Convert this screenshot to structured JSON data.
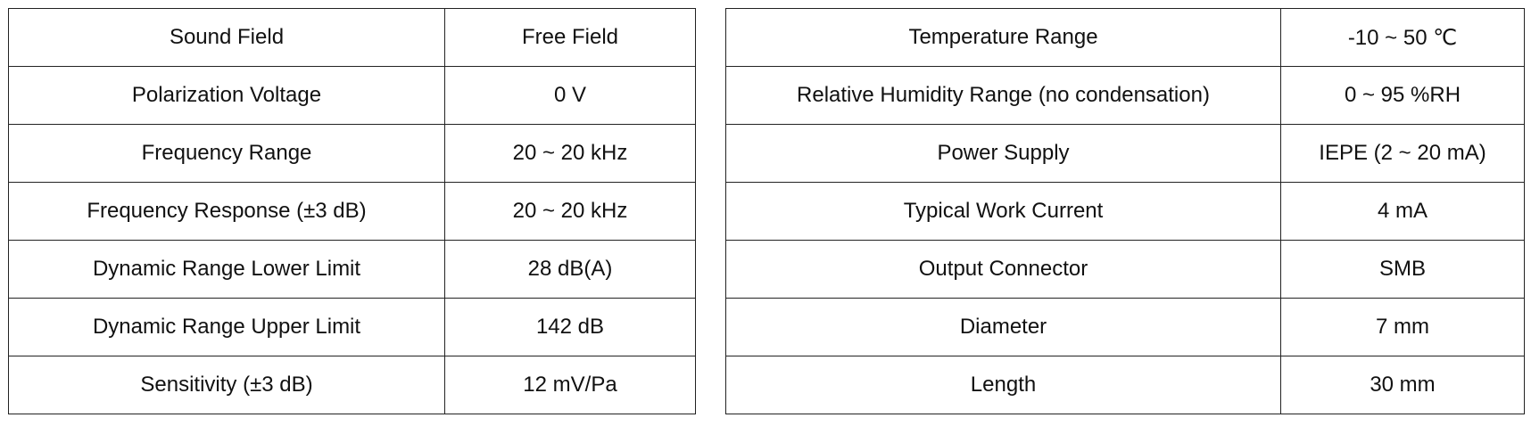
{
  "left_table": {
    "rows": [
      [
        "Sound Field",
        "Free Field"
      ],
      [
        "Polarization Voltage",
        "0 V"
      ],
      [
        "Frequency Range",
        "20 ~ 20 kHz"
      ],
      [
        "Frequency Response (±3 dB)",
        "20 ~ 20 kHz"
      ],
      [
        "Dynamic Range Lower Limit",
        "28 dB(A)"
      ],
      [
        "Dynamic Range Upper Limit",
        "142 dB"
      ],
      [
        "Sensitivity (±3 dB)",
        "12 mV/Pa"
      ]
    ]
  },
  "right_table": {
    "rows": [
      [
        "Temperature Range",
        "-10 ~ 50 ℃"
      ],
      [
        "Relative Humidity Range (no condensation)",
        "0 ~ 95 %RH"
      ],
      [
        "Power Supply",
        "IEPE (2 ~ 20 mA)"
      ],
      [
        "Typical Work Current",
        "4 mA"
      ],
      [
        "Output Connector",
        "SMB"
      ],
      [
        "Diameter",
        "7 mm"
      ],
      [
        "Length",
        "30 mm"
      ]
    ]
  }
}
